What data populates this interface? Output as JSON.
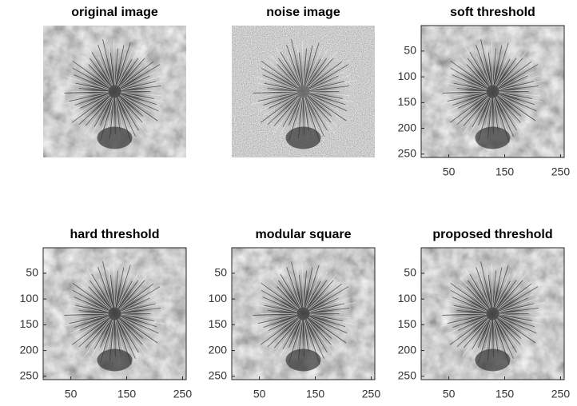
{
  "panels": [
    {
      "title": "original image"
    },
    {
      "title": "noise image"
    },
    {
      "title": "soft threshold",
      "xlim": [
        0.5,
        256.5
      ],
      "ylim": [
        0.5,
        256.5
      ],
      "xticks": [
        50,
        150,
        250
      ],
      "yticks": [
        50,
        100,
        150,
        200,
        250
      ]
    },
    {
      "title": "hard threshold",
      "xlim": [
        0.5,
        256.5
      ],
      "ylim": [
        0.5,
        256.5
      ],
      "xticks": [
        50,
        150,
        250
      ],
      "yticks": [
        50,
        100,
        150,
        200,
        250
      ]
    },
    {
      "title": "modular square",
      "xlim": [
        0.5,
        256.5
      ],
      "ylim": [
        0.5,
        256.5
      ],
      "xticks": [
        50,
        150,
        250
      ],
      "yticks": [
        50,
        100,
        150,
        200,
        250
      ]
    },
    {
      "title": "proposed threshold",
      "xlim": [
        0.5,
        256.5
      ],
      "ylim": [
        0.5,
        256.5
      ],
      "xticks": [
        50,
        150,
        250
      ],
      "yticks": [
        50,
        100,
        150,
        200,
        250
      ]
    }
  ]
}
